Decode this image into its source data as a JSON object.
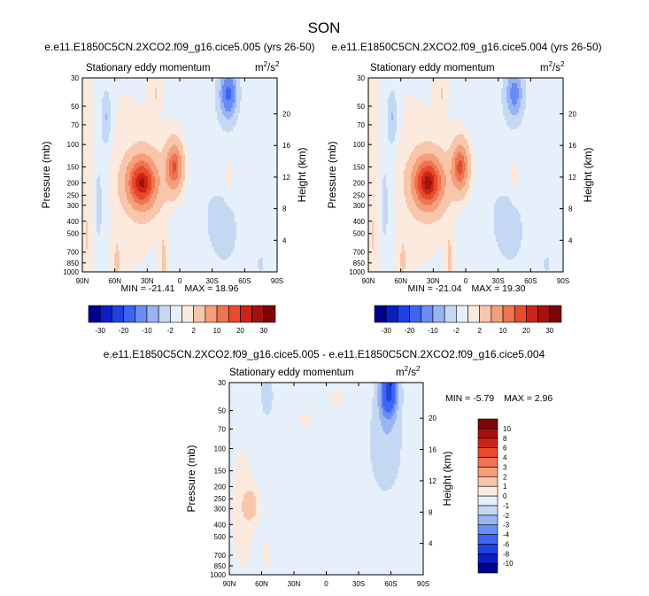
{
  "page_title": "SON",
  "chart_data": [
    {
      "type": "heatmap",
      "case": "e.e11.E1850C5CN.2XCO2.f09_g16.cice5.005 (yrs 26-50)",
      "title": "Stationary eddy momentum",
      "units_base": "m",
      "units_sup1": "2",
      "units_mid": "/s",
      "units_sup2": "2",
      "xlabel": "",
      "ylabel": "Pressure (mb)",
      "y2label": "Height (km)",
      "x_ticks": [
        90,
        60,
        30,
        0,
        -30,
        -60,
        -90
      ],
      "x_tick_labels": [
        "90N",
        "60N",
        "30N",
        "0",
        "30S",
        "60S",
        "90S"
      ],
      "y_ticks": [
        30,
        50,
        70,
        100,
        150,
        200,
        250,
        300,
        400,
        500,
        700,
        850,
        1000
      ],
      "y_tick_labels": [
        "30",
        "50",
        "70",
        "100",
        "150",
        "200",
        "250",
        "300",
        "400",
        "500",
        "700",
        "850",
        "1000"
      ],
      "y2_ticks": [
        4,
        8,
        12,
        16,
        20
      ],
      "y2_tick_labels": [
        "4",
        "8",
        "12",
        "16",
        "20"
      ],
      "ylim": [
        1000,
        30
      ],
      "xlim": [
        90,
        -90
      ],
      "stats_min_label": "MIN = ",
      "min": "-21.41",
      "stats_max_label": "MAX = ",
      "max": "18.96",
      "features": [
        {
          "lat": 35,
          "p": 200,
          "value": 18.5
        },
        {
          "lat": 5,
          "p": 150,
          "value": 14
        },
        {
          "lat": -45,
          "p": 40,
          "value": -16
        },
        {
          "lat": 68,
          "p": 60,
          "value": -6
        },
        {
          "lat": -45,
          "p": 180,
          "value": 2.5
        },
        {
          "lat": -45,
          "p": 500,
          "value": -2
        },
        {
          "lat": -75,
          "p": 870,
          "value": -4
        }
      ],
      "colorbar": {
        "orientation": "horizontal",
        "levels": [
          "-30",
          "-20",
          "-10",
          "-2",
          "2",
          "10",
          "20",
          "30"
        ],
        "colors": [
          "#00008b",
          "#0c1fbe",
          "#1f42e1",
          "#3a66f2",
          "#6a8cf5",
          "#99b4f3",
          "#c5d8f3",
          "#e6f0fb",
          "#fdeade",
          "#f8c6aa",
          "#f59e7a",
          "#ef7452",
          "#e84a2c",
          "#c92618",
          "#a2120f",
          "#7c0406"
        ]
      }
    },
    {
      "type": "heatmap",
      "case": "e.e11.E1850C5CN.2XCO2.f09_g16.cice5.004 (yrs 26-50)",
      "title": "Stationary eddy momentum",
      "units_base": "m",
      "units_sup1": "2",
      "units_mid": "/s",
      "units_sup2": "2",
      "xlabel": "",
      "ylabel": "Pressure (mb)",
      "y2label": "Height (km)",
      "x_ticks": [
        90,
        60,
        30,
        0,
        -30,
        -60,
        -90
      ],
      "x_tick_labels": [
        "90N",
        "60N",
        "30N",
        "0",
        "30S",
        "60S",
        "90S"
      ],
      "y_ticks": [
        30,
        50,
        70,
        100,
        150,
        200,
        250,
        300,
        400,
        500,
        700,
        850,
        1000
      ],
      "y_tick_labels": [
        "30",
        "50",
        "70",
        "100",
        "150",
        "200",
        "250",
        "300",
        "400",
        "500",
        "700",
        "850",
        "1000"
      ],
      "y2_ticks": [
        4,
        8,
        12,
        16,
        20
      ],
      "y2_tick_labels": [
        "4",
        "8",
        "12",
        "16",
        "20"
      ],
      "ylim": [
        1000,
        30
      ],
      "xlim": [
        90,
        -90
      ],
      "stats_min_label": "MIN = ",
      "min": "-21.04",
      "stats_max_label": "MAX = ",
      "max": "19.30",
      "features": [
        {
          "lat": 35,
          "p": 200,
          "value": 19
        },
        {
          "lat": 5,
          "p": 150,
          "value": 14.5
        },
        {
          "lat": -45,
          "p": 40,
          "value": -12
        },
        {
          "lat": 68,
          "p": 60,
          "value": -6
        },
        {
          "lat": -45,
          "p": 180,
          "value": 2.5
        },
        {
          "lat": -45,
          "p": 500,
          "value": -2
        },
        {
          "lat": -75,
          "p": 870,
          "value": -4
        }
      ],
      "colorbar": {
        "orientation": "horizontal",
        "levels": [
          "-30",
          "-20",
          "-10",
          "-2",
          "2",
          "10",
          "20",
          "30"
        ],
        "colors": [
          "#00008b",
          "#0c1fbe",
          "#1f42e1",
          "#3a66f2",
          "#6a8cf5",
          "#99b4f3",
          "#c5d8f3",
          "#e6f0fb",
          "#fdeade",
          "#f8c6aa",
          "#f59e7a",
          "#ef7452",
          "#e84a2c",
          "#c92618",
          "#a2120f",
          "#7c0406"
        ]
      }
    },
    {
      "type": "heatmap",
      "case": "e.e11.E1850C5CN.2XCO2.f09_g16.cice5.005 - e.e11.E1850C5CN.2XCO2.f09_g16.cice5.004",
      "title": "Stationary eddy momentum",
      "units_base": "m",
      "units_sup1": "2",
      "units_mid": "/s",
      "units_sup2": "2",
      "xlabel": "",
      "ylabel": "Pressure (mb)",
      "y2label": "Height (km)",
      "x_ticks": [
        90,
        60,
        30,
        0,
        -30,
        -60,
        -90
      ],
      "x_tick_labels": [
        "90N",
        "60N",
        "30N",
        "0",
        "30S",
        "60S",
        "90S"
      ],
      "y_ticks": [
        30,
        50,
        70,
        100,
        150,
        200,
        250,
        300,
        400,
        500,
        700,
        850,
        1000
      ],
      "y_tick_labels": [
        "30",
        "50",
        "70",
        "100",
        "150",
        "200",
        "250",
        "300",
        "400",
        "500",
        "700",
        "850",
        "1000"
      ],
      "y2_ticks": [
        4,
        8,
        12,
        16,
        20
      ],
      "y2_tick_labels": [
        "4",
        "8",
        "12",
        "16",
        "20"
      ],
      "ylim": [
        1000,
        30
      ],
      "xlim": [
        90,
        -90
      ],
      "stats_min_label": "MIN = ",
      "min": "-5.79",
      "stats_max_label": "MAX = ",
      "max": "2.96",
      "features": [
        {
          "lat": 68,
          "p": 280,
          "value": 1.6
        },
        {
          "lat": -58,
          "p": 35,
          "value": -5.8
        },
        {
          "lat": 55,
          "p": 38,
          "value": -1.5
        },
        {
          "lat": 20,
          "p": 60,
          "value": 0.6
        }
      ],
      "colorbar": {
        "orientation": "vertical",
        "levels": [
          "-10",
          "-8",
          "-6",
          "-4",
          "-3",
          "-2",
          "-1",
          "0",
          "1",
          "2",
          "3",
          "4",
          "6",
          "8",
          "10"
        ],
        "colors": [
          "#00008b",
          "#0c1fbe",
          "#1f42e1",
          "#3a66f2",
          "#6a8cf5",
          "#99b4f3",
          "#c5d8f3",
          "#e6f0fb",
          "#fdeade",
          "#f8c6aa",
          "#f59e7a",
          "#ef7452",
          "#e84a2c",
          "#c92618",
          "#a2120f",
          "#7c0406"
        ]
      }
    }
  ]
}
